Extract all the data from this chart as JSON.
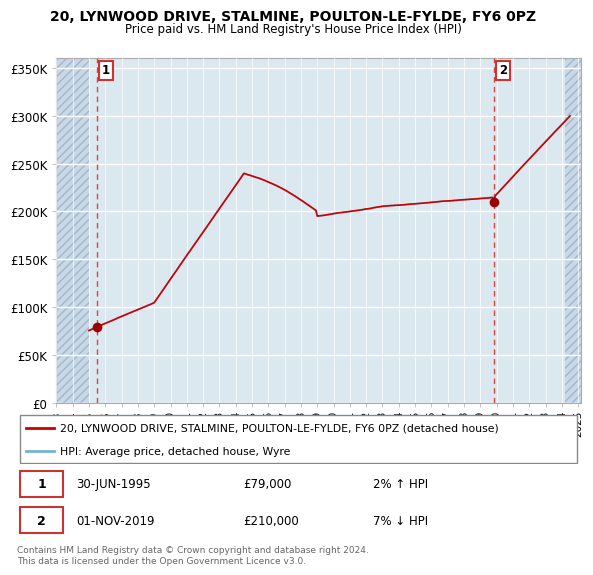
{
  "title": "20, LYNWOOD DRIVE, STALMINE, POULTON-LE-FYLDE, FY6 0PZ",
  "subtitle": "Price paid vs. HM Land Registry's House Price Index (HPI)",
  "xlim_start": 1993.0,
  "xlim_end": 2025.2,
  "ylim": [
    0,
    360000
  ],
  "yticks": [
    0,
    50000,
    100000,
    150000,
    200000,
    250000,
    300000,
    350000
  ],
  "ytick_labels": [
    "£0",
    "£50K",
    "£100K",
    "£150K",
    "£200K",
    "£250K",
    "£300K",
    "£350K"
  ],
  "point1_x": 1995.5,
  "point1_y": 79000,
  "point2_x": 2019.83,
  "point2_y": 210000,
  "legend_line1": "20, LYNWOOD DRIVE, STALMINE, POULTON-LE-FYLDE, FY6 0PZ (detached house)",
  "legend_line2": "HPI: Average price, detached house, Wyre",
  "footer": "Contains HM Land Registry data © Crown copyright and database right 2024.\nThis data is licensed under the Open Government Licence v3.0.",
  "line_color_red": "#cc0000",
  "line_color_blue": "#7ab0d4",
  "point_color": "#990000",
  "vline_color": "#dd4444",
  "hatch_left_end": 1995.0,
  "hatch_right_start": 2024.17,
  "bg_color": "#dce8f0",
  "grid_color": "#ffffff",
  "hatch_color": "#c8d8e8"
}
